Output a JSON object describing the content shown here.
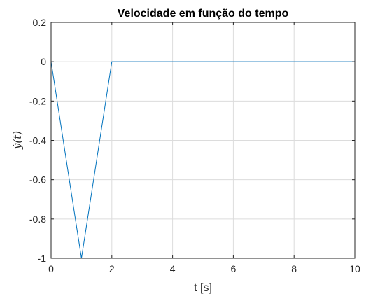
{
  "chart_data": {
    "type": "line",
    "title": "Velocidade em função do tempo",
    "xlabel": "t [s]",
    "ylabel": "ẏ(t)",
    "xlim": [
      0,
      10
    ],
    "ylim": [
      -1,
      0.2
    ],
    "xticks": [
      0,
      2,
      4,
      6,
      8,
      10
    ],
    "xtick_labels": [
      "0",
      "2",
      "4",
      "6",
      "8",
      "10"
    ],
    "yticks": [
      0.2,
      0,
      -0.2,
      -0.4,
      -0.6,
      -0.8,
      -1
    ],
    "ytick_labels": [
      "0.2",
      "0",
      "-0.2",
      "-0.4",
      "-0.6",
      "-0.8",
      "-1"
    ],
    "grid": true,
    "series": [
      {
        "color": "#0072BD",
        "x": [
          0,
          1,
          2,
          10
        ],
        "y": [
          0,
          -1,
          0,
          0
        ]
      }
    ]
  }
}
